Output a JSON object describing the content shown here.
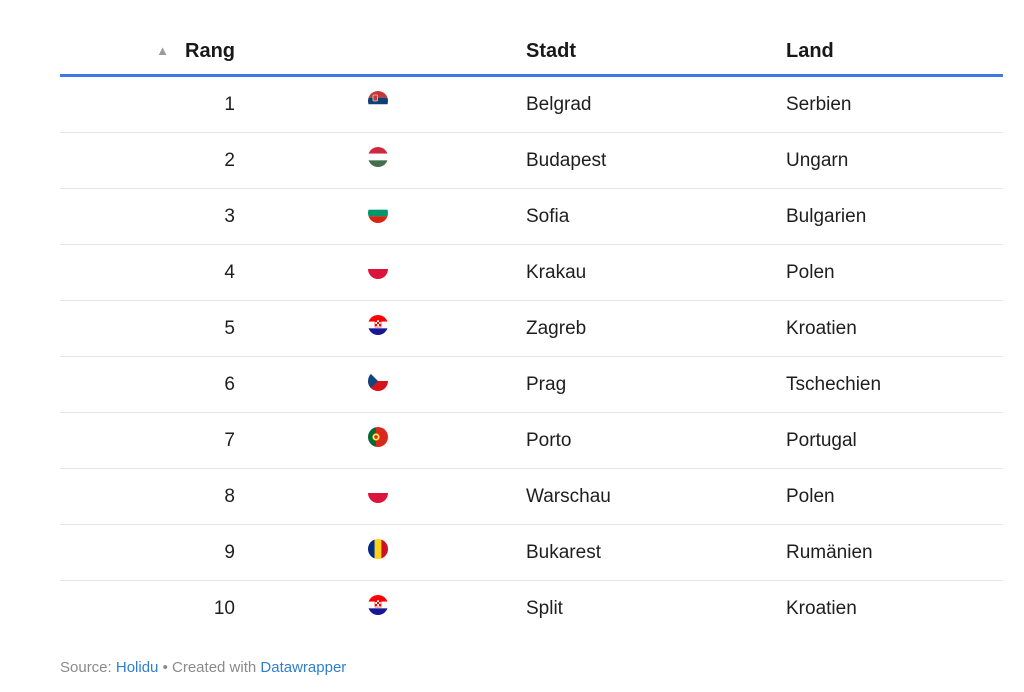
{
  "chart_data": {
    "type": "table",
    "columns": {
      "rank": "Rang",
      "city": "Stadt",
      "country": "Land"
    },
    "sort": {
      "column": "rank",
      "direction": "ascending",
      "icon": "sort-ascending-icon"
    },
    "rows": [
      {
        "rank": "1",
        "flag": "serbia",
        "city": "Belgrad",
        "country": "Serbien"
      },
      {
        "rank": "2",
        "flag": "hungary",
        "city": "Budapest",
        "country": "Ungarn"
      },
      {
        "rank": "3",
        "flag": "bulgaria",
        "city": "Sofia",
        "country": "Bulgarien"
      },
      {
        "rank": "4",
        "flag": "poland",
        "city": "Krakau",
        "country": "Polen"
      },
      {
        "rank": "5",
        "flag": "croatia",
        "city": "Zagreb",
        "country": "Kroatien"
      },
      {
        "rank": "6",
        "flag": "czech-republic",
        "city": "Prag",
        "country": "Tschechien"
      },
      {
        "rank": "7",
        "flag": "portugal",
        "city": "Porto",
        "country": "Portugal"
      },
      {
        "rank": "8",
        "flag": "poland",
        "city": "Warschau",
        "country": "Polen"
      },
      {
        "rank": "9",
        "flag": "romania",
        "city": "Bukarest",
        "country": "Rumänien"
      },
      {
        "rank": "10",
        "flag": "croatia",
        "city": "Split",
        "country": "Kroatien"
      }
    ]
  },
  "footer": {
    "source_label": "Source:",
    "source_name": "Holidu",
    "separator": "•",
    "created_with": "Created with",
    "tool_name": "Datawrapper"
  },
  "colors": {
    "header_rule": "#3c79e6",
    "row_rule": "#e6e6e6",
    "link": "#2f7fd1"
  }
}
